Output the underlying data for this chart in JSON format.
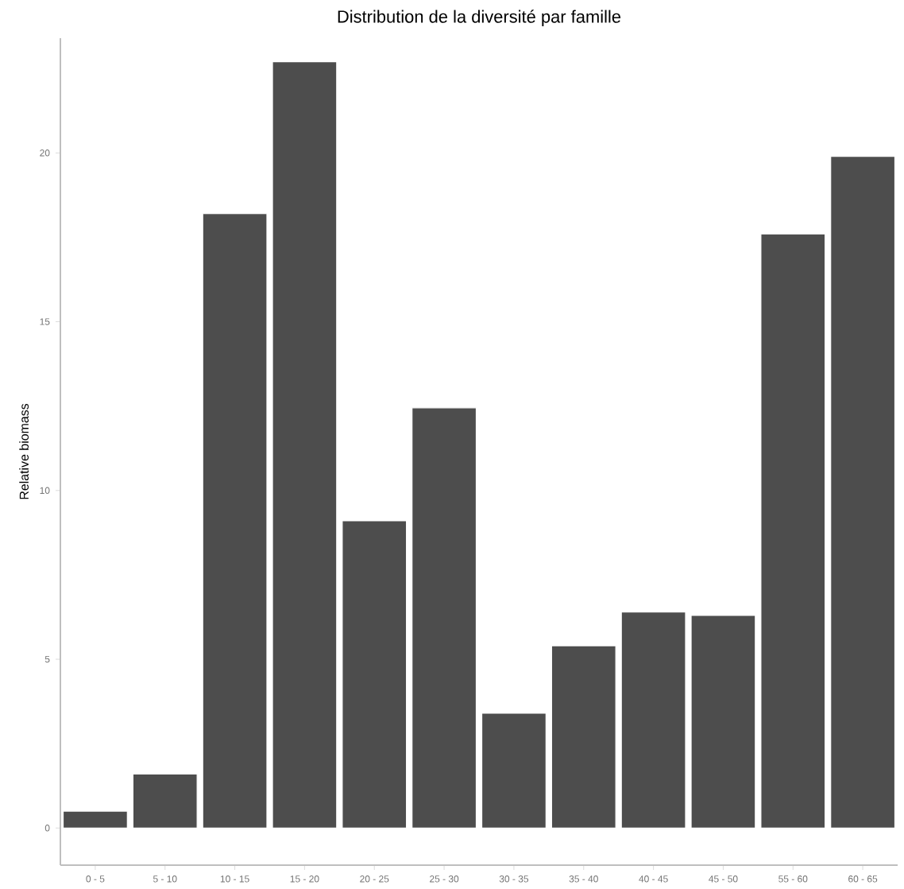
{
  "chart_data": {
    "type": "bar",
    "title": "Distribution de la diversité par famille",
    "ylabel": "Relative biomass",
    "categories": [
      "0 - 5",
      "5 - 10",
      "10 - 15",
      "15 - 20",
      "20 - 25",
      "25 - 30",
      "30 - 35",
      "35 - 40",
      "40 - 45",
      "45 - 50",
      "55 - 60",
      "60 - 65"
    ],
    "values": [
      0.5,
      1.6,
      18.2,
      22.7,
      9.1,
      12.45,
      3.4,
      5.4,
      6.4,
      6.3,
      17.6,
      19.9
    ],
    "color": "#4d4d4d",
    "ylim": [
      -1.1,
      23.4
    ],
    "yticks": [
      0,
      5,
      10,
      15,
      20
    ],
    "grid": false
  }
}
